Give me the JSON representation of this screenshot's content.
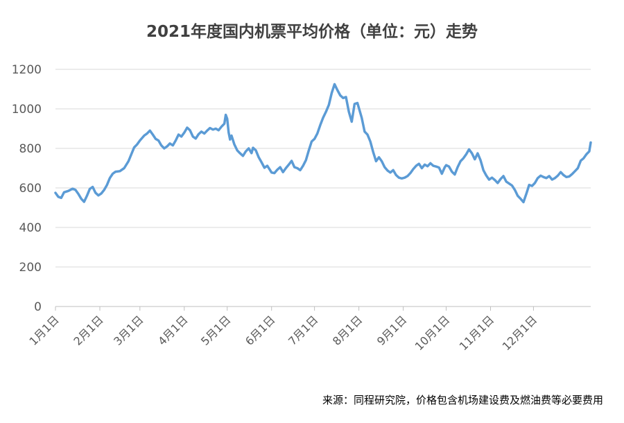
{
  "chart_data": {
    "type": "line",
    "title": "2021年度国内机票平均价格（单位：元）走势",
    "source": "来源：同程研究院，价格包含机场建设费及燃油费等必要费用",
    "xlabel": "",
    "ylabel": "",
    "ylim": [
      0,
      1200
    ],
    "yticks": [
      0,
      200,
      400,
      600,
      800,
      1000,
      1200
    ],
    "grid": true,
    "line_color": "#5B9BD5",
    "x_tick_labels": [
      "1月1日",
      "2月1日",
      "3月1日",
      "4月1日",
      "5月1日",
      "6月1日",
      "7月1日",
      "8月1日",
      "9月1日",
      "10月1日",
      "11月1日",
      "12月1日"
    ],
    "x_tick_days": [
      1,
      32,
      60,
      91,
      121,
      152,
      182,
      213,
      244,
      274,
      305,
      335
    ],
    "series": [
      {
        "points": [
          [
            1,
            575
          ],
          [
            3,
            555
          ],
          [
            5,
            550
          ],
          [
            7,
            578
          ],
          [
            10,
            585
          ],
          [
            13,
            596
          ],
          [
            15,
            590
          ],
          [
            17,
            570
          ],
          [
            19,
            545
          ],
          [
            21,
            530
          ],
          [
            23,
            560
          ],
          [
            25,
            595
          ],
          [
            27,
            605
          ],
          [
            29,
            575
          ],
          [
            31,
            562
          ],
          [
            33,
            572
          ],
          [
            35,
            590
          ],
          [
            37,
            615
          ],
          [
            39,
            650
          ],
          [
            41,
            672
          ],
          [
            43,
            682
          ],
          [
            46,
            685
          ],
          [
            49,
            700
          ],
          [
            52,
            735
          ],
          [
            54,
            770
          ],
          [
            56,
            805
          ],
          [
            58,
            820
          ],
          [
            60,
            840
          ],
          [
            63,
            865
          ],
          [
            65,
            875
          ],
          [
            67,
            890
          ],
          [
            69,
            870
          ],
          [
            71,
            848
          ],
          [
            73,
            840
          ],
          [
            75,
            815
          ],
          [
            77,
            800
          ],
          [
            79,
            810
          ],
          [
            81,
            825
          ],
          [
            83,
            815
          ],
          [
            85,
            840
          ],
          [
            87,
            870
          ],
          [
            89,
            860
          ],
          [
            91,
            880
          ],
          [
            93,
            905
          ],
          [
            95,
            892
          ],
          [
            97,
            860
          ],
          [
            99,
            850
          ],
          [
            101,
            872
          ],
          [
            103,
            885
          ],
          [
            105,
            875
          ],
          [
            107,
            890
          ],
          [
            109,
            903
          ],
          [
            111,
            895
          ],
          [
            113,
            900
          ],
          [
            115,
            892
          ],
          [
            117,
            910
          ],
          [
            119,
            925
          ],
          [
            120,
            970
          ],
          [
            121,
            950
          ],
          [
            122,
            880
          ],
          [
            123,
            845
          ],
          [
            124,
            865
          ],
          [
            126,
            820
          ],
          [
            128,
            790
          ],
          [
            130,
            775
          ],
          [
            132,
            762
          ],
          [
            134,
            785
          ],
          [
            136,
            800
          ],
          [
            138,
            776
          ],
          [
            139,
            803
          ],
          [
            141,
            790
          ],
          [
            143,
            755
          ],
          [
            145,
            730
          ],
          [
            147,
            702
          ],
          [
            149,
            712
          ],
          [
            151,
            690
          ],
          [
            152,
            678
          ],
          [
            154,
            675
          ],
          [
            156,
            692
          ],
          [
            158,
            705
          ],
          [
            160,
            680
          ],
          [
            162,
            700
          ],
          [
            164,
            718
          ],
          [
            166,
            737
          ],
          [
            168,
            705
          ],
          [
            170,
            700
          ],
          [
            172,
            690
          ],
          [
            174,
            712
          ],
          [
            176,
            740
          ],
          [
            178,
            790
          ],
          [
            180,
            835
          ],
          [
            182,
            848
          ],
          [
            184,
            875
          ],
          [
            186,
            918
          ],
          [
            188,
            955
          ],
          [
            190,
            985
          ],
          [
            192,
            1020
          ],
          [
            194,
            1080
          ],
          [
            196,
            1125
          ],
          [
            198,
            1095
          ],
          [
            200,
            1068
          ],
          [
            202,
            1055
          ],
          [
            204,
            1060
          ],
          [
            206,
            985
          ],
          [
            208,
            935
          ],
          [
            210,
            1025
          ],
          [
            212,
            1030
          ],
          [
            213,
            1005
          ],
          [
            215,
            955
          ],
          [
            217,
            885
          ],
          [
            219,
            870
          ],
          [
            221,
            835
          ],
          [
            223,
            782
          ],
          [
            225,
            735
          ],
          [
            227,
            755
          ],
          [
            229,
            735
          ],
          [
            231,
            705
          ],
          [
            233,
            688
          ],
          [
            235,
            678
          ],
          [
            237,
            690
          ],
          [
            239,
            665
          ],
          [
            241,
            652
          ],
          [
            243,
            648
          ],
          [
            245,
            652
          ],
          [
            247,
            660
          ],
          [
            249,
            675
          ],
          [
            251,
            695
          ],
          [
            253,
            712
          ],
          [
            255,
            722
          ],
          [
            257,
            700
          ],
          [
            259,
            718
          ],
          [
            261,
            710
          ],
          [
            263,
            725
          ],
          [
            265,
            712
          ],
          [
            267,
            708
          ],
          [
            269,
            703
          ],
          [
            271,
            672
          ],
          [
            273,
            705
          ],
          [
            274,
            715
          ],
          [
            276,
            708
          ],
          [
            278,
            682
          ],
          [
            280,
            668
          ],
          [
            282,
            705
          ],
          [
            284,
            735
          ],
          [
            286,
            750
          ],
          [
            288,
            770
          ],
          [
            290,
            795
          ],
          [
            292,
            775
          ],
          [
            294,
            745
          ],
          [
            296,
            775
          ],
          [
            298,
            740
          ],
          [
            300,
            690
          ],
          [
            302,
            663
          ],
          [
            304,
            642
          ],
          [
            306,
            652
          ],
          [
            308,
            640
          ],
          [
            310,
            625
          ],
          [
            312,
            645
          ],
          [
            314,
            660
          ],
          [
            316,
            632
          ],
          [
            318,
            622
          ],
          [
            320,
            612
          ],
          [
            322,
            590
          ],
          [
            324,
            560
          ],
          [
            326,
            545
          ],
          [
            328,
            528
          ],
          [
            330,
            570
          ],
          [
            332,
            615
          ],
          [
            334,
            610
          ],
          [
            336,
            625
          ],
          [
            338,
            650
          ],
          [
            340,
            662
          ],
          [
            342,
            655
          ],
          [
            344,
            650
          ],
          [
            346,
            660
          ],
          [
            348,
            642
          ],
          [
            350,
            650
          ],
          [
            352,
            662
          ],
          [
            354,
            680
          ],
          [
            356,
            665
          ],
          [
            358,
            655
          ],
          [
            360,
            658
          ],
          [
            362,
            670
          ],
          [
            364,
            685
          ],
          [
            366,
            700
          ],
          [
            368,
            738
          ],
          [
            370,
            750
          ],
          [
            372,
            770
          ],
          [
            374,
            785
          ],
          [
            375,
            830
          ]
        ]
      }
    ]
  }
}
